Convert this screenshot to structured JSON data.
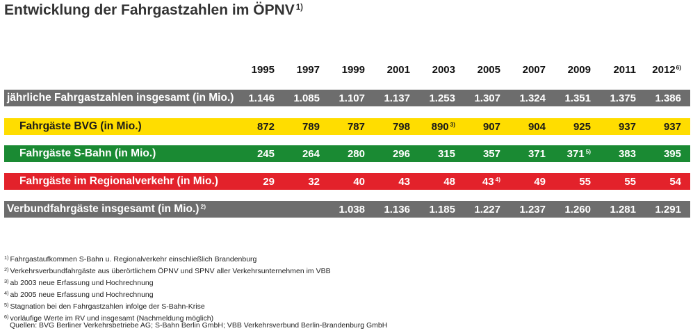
{
  "title": "Entwicklung der Fahrgastzahlen im ÖPNV",
  "title_note": "1)",
  "chart_data": {
    "type": "table",
    "title": "Entwicklung der Fahrgastzahlen im ÖPNV",
    "years": [
      "1995",
      "1997",
      "1999",
      "2001",
      "2003",
      "2005",
      "2007",
      "2009",
      "2011",
      "2012"
    ],
    "year_notes": [
      "",
      "",
      "",
      "",
      "",
      "",
      "",
      "",
      "",
      "6)"
    ],
    "rows": [
      {
        "label": "jährliche Fahrgastzahlen insgesamt (in Mio.)",
        "label_note": "",
        "bg": "#6d6d6d",
        "fg": "#ffffff",
        "label_indent": 0,
        "values": [
          "1.146",
          "1.085",
          "1.107",
          "1.137",
          "1.253",
          "1.307",
          "1.324",
          "1.351",
          "1.375",
          "1.386"
        ],
        "notes": [
          "",
          "",
          "",
          "",
          "",
          "",
          "",
          "",
          "",
          ""
        ]
      },
      {
        "label": "Fahrgäste BVG (in Mio.)",
        "label_note": "",
        "bg": "#ffdd00",
        "fg": "#1a1a1a",
        "label_indent": 1,
        "values": [
          "872",
          "789",
          "787",
          "798",
          "890",
          "907",
          "904",
          "925",
          "937",
          "937"
        ],
        "notes": [
          "",
          "",
          "",
          "",
          "3)",
          "",
          "",
          "",
          "",
          ""
        ]
      },
      {
        "label": "Fahrgäste S-Bahn (in Mio.)",
        "label_note": "",
        "bg": "#1a8a33",
        "fg": "#ffffff",
        "label_indent": 1,
        "values": [
          "245",
          "264",
          "280",
          "296",
          "315",
          "357",
          "371",
          "371",
          "383",
          "395"
        ],
        "notes": [
          "",
          "",
          "",
          "",
          "",
          "",
          "",
          "5)",
          "",
          ""
        ]
      },
      {
        "label": "Fahrgäste im Regionalverkehr (in Mio.)",
        "label_note": "",
        "bg": "#e3222b",
        "fg": "#ffffff",
        "label_indent": 1,
        "values": [
          "29",
          "32",
          "40",
          "43",
          "48",
          "43",
          "49",
          "55",
          "55",
          "54"
        ],
        "notes": [
          "",
          "",
          "",
          "",
          "",
          "4)",
          "",
          "",
          "",
          ""
        ]
      },
      {
        "label": "Verbundfahrgäste insgesamt (in Mio.)",
        "label_note": "2)",
        "bg": "#6d6d6d",
        "fg": "#ffffff",
        "label_indent": 0,
        "values": [
          "",
          "",
          "1.038",
          "1.136",
          "1.185",
          "1.227",
          "1.237",
          "1.260",
          "1.281",
          "1.291"
        ],
        "notes": [
          "",
          "",
          "",
          "",
          "",
          "",
          "",
          "",
          "",
          ""
        ]
      }
    ]
  },
  "footnotes": [
    {
      "mark": "1)",
      "text": "Fahrgastaufkommen S-Bahn u. Regionalverkehr einschließlich Brandenburg"
    },
    {
      "mark": "2)",
      "text": "Verkehrsverbundfahrgäste aus überörtlichem ÖPNV und SPNV aller Verkehrsunternehmen im VBB"
    },
    {
      "mark": "3)",
      "text": "ab 2003 neue Erfassung und Hochrechnung"
    },
    {
      "mark": "4)",
      "text": "ab 2005 neue Erfassung und Hochrechnung"
    },
    {
      "mark": "5)",
      "text": "Stagnation bei den Fahrgastzahlen infolge der S-Bahn-Krise"
    },
    {
      "mark": "6)",
      "text": "vorläufige Werte im RV und insgesamt (Nachmeldung möglich)"
    }
  ],
  "sources": "Quellen: BVG Berliner Verkehrsbetriebe AG; S-Bahn Berlin GmbH; VBB Verkehrsverbund Berlin-Brandenburg GmbH"
}
